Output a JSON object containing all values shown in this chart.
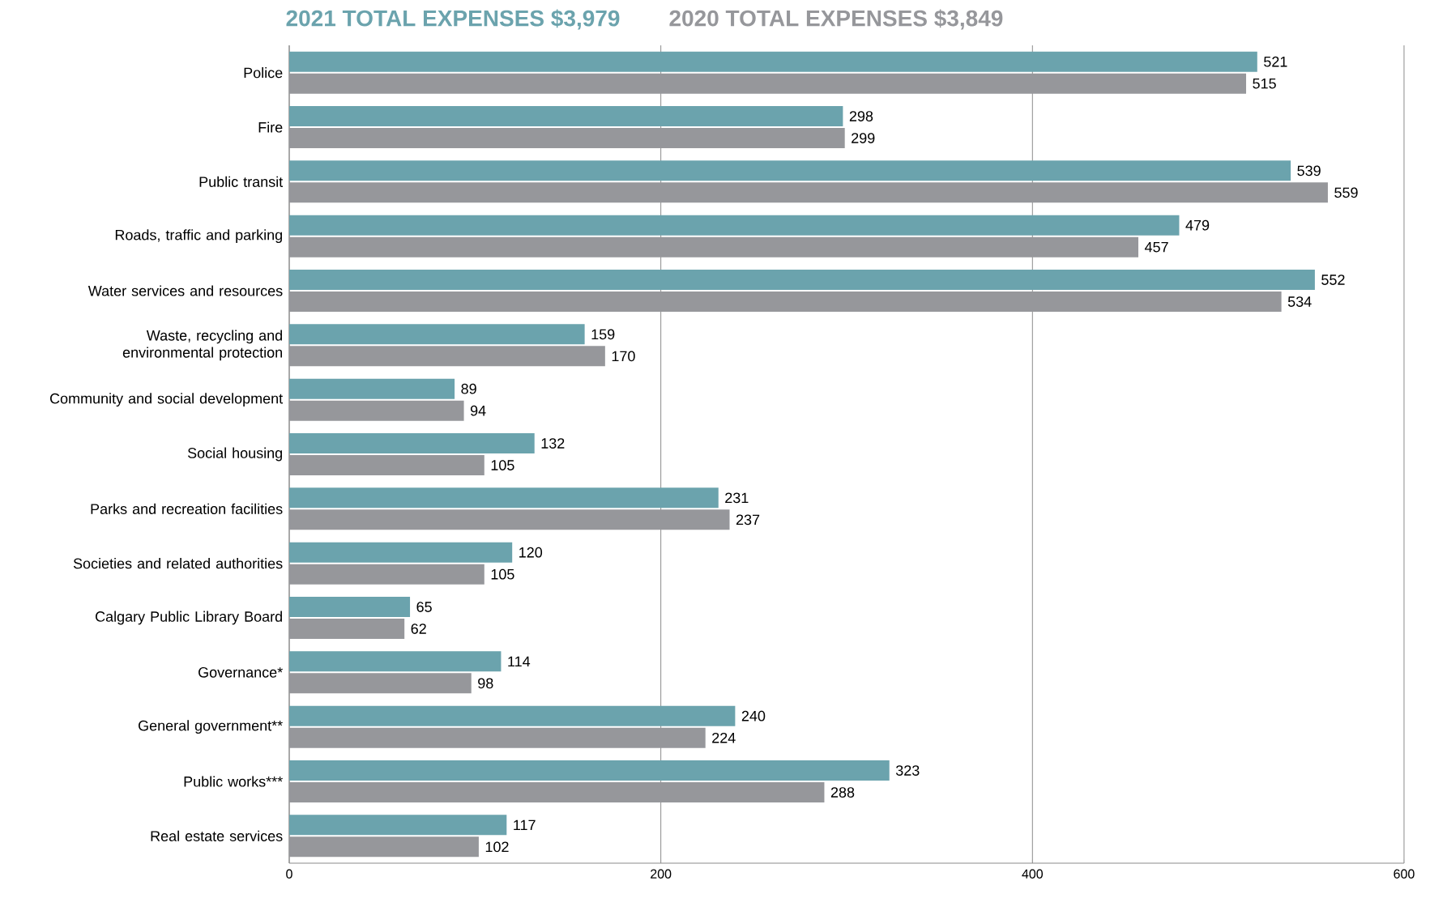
{
  "chart_data": {
    "type": "bar",
    "orientation": "horizontal",
    "categories": [
      "Police",
      "Fire",
      "Public transit",
      "Roads, traffic and parking",
      "Water services and resources",
      "Waste, recycling and environmental protection",
      "Community and social development",
      "Social housing",
      "Parks and recreation facilities",
      "Societies and related authorities",
      "Calgary Public Library Board",
      "Governance*",
      "General government**",
      "Public works***",
      "Real estate services"
    ],
    "series": [
      {
        "name": "2021 TOTAL EXPENSES $3,979",
        "color": "#6ba3ad",
        "values": [
          521,
          298,
          539,
          479,
          552,
          159,
          89,
          132,
          231,
          120,
          65,
          114,
          240,
          323,
          117
        ]
      },
      {
        "name": "2020 TOTAL EXPENSES $3,849",
        "color": "#96979b",
        "values": [
          515,
          299,
          559,
          457,
          534,
          170,
          94,
          105,
          237,
          105,
          62,
          98,
          224,
          288,
          102
        ]
      }
    ],
    "xlim": [
      0,
      600
    ],
    "xticks": [
      0,
      200,
      400,
      600
    ],
    "grid": "x",
    "data_labels": true,
    "legend": "top"
  }
}
